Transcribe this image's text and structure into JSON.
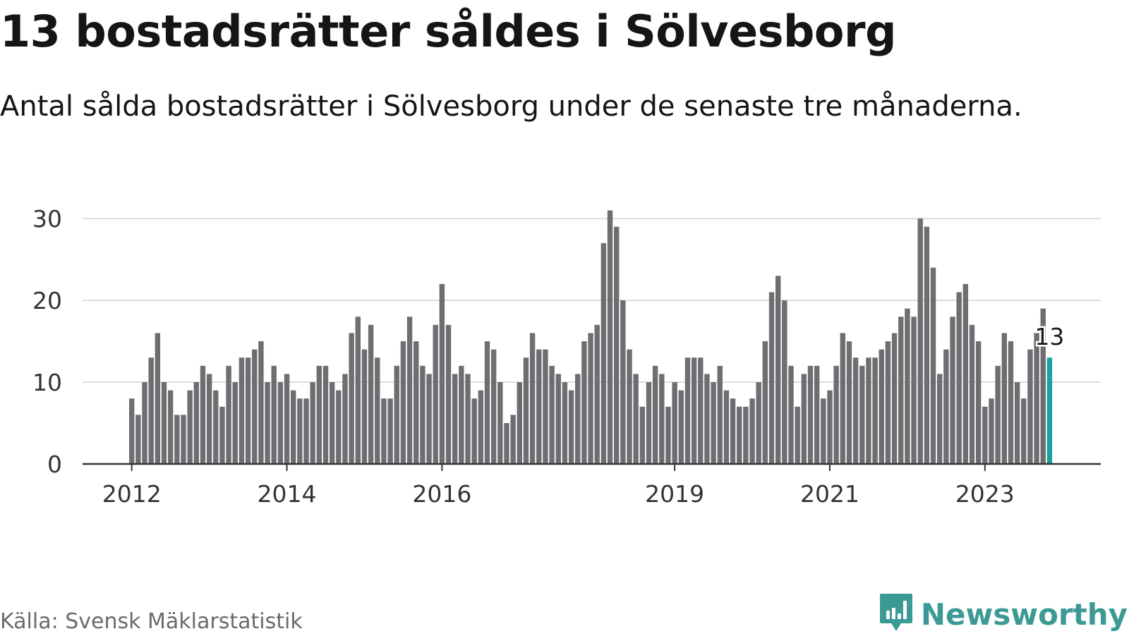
{
  "title": "13 bostadsrätter såldes i Sölvesborg",
  "subtitle": "Antal sålda bostadsrätter i Sölvesborg under de senaste tre månaderna.",
  "source": "Källa: Svensk Mäklarstatistik",
  "brand": {
    "name": "Newsworthy",
    "icon": "newsworthy-logo-icon"
  },
  "colors": {
    "bar": "#6e6e72",
    "highlight": "#1aa19a",
    "grid": "#dddddd",
    "axis": "#333333",
    "brand": "#3c9a95"
  },
  "chart_data": {
    "type": "bar",
    "x_start": "2012-01",
    "x_end": "2023-12",
    "values": [
      8,
      6,
      10,
      13,
      16,
      10,
      9,
      6,
      6,
      9,
      10,
      12,
      11,
      9,
      7,
      12,
      10,
      13,
      13,
      14,
      15,
      10,
      12,
      10,
      11,
      9,
      8,
      8,
      10,
      12,
      12,
      10,
      9,
      11,
      16,
      18,
      14,
      17,
      13,
      8,
      8,
      12,
      15,
      18,
      15,
      12,
      11,
      17,
      22,
      17,
      11,
      12,
      11,
      8,
      9,
      15,
      14,
      10,
      5,
      6,
      10,
      13,
      16,
      14,
      14,
      12,
      11,
      10,
      9,
      11,
      15,
      16,
      17,
      27,
      31,
      29,
      20,
      14,
      11,
      7,
      10,
      12,
      11,
      7,
      10,
      9,
      13,
      13,
      13,
      11,
      10,
      12,
      9,
      8,
      7,
      7,
      8,
      10,
      15,
      21,
      23,
      20,
      12,
      7,
      11,
      12,
      12,
      8,
      9,
      12,
      16,
      15,
      13,
      12,
      13,
      13,
      14,
      15,
      16,
      18,
      19,
      18,
      30,
      29,
      24,
      11,
      14,
      18,
      21,
      22,
      17,
      15,
      7,
      8,
      12,
      16,
      15,
      10,
      8,
      14,
      16,
      19,
      13
    ],
    "highlight_label": "13",
    "xticks": [
      "2012",
      "2014",
      "2016",
      "2019",
      "2021",
      "2023"
    ],
    "ylim": [
      0,
      30
    ],
    "yticks": [
      0,
      10,
      20,
      30
    ],
    "grid": true,
    "xlabel": "",
    "ylabel": ""
  }
}
